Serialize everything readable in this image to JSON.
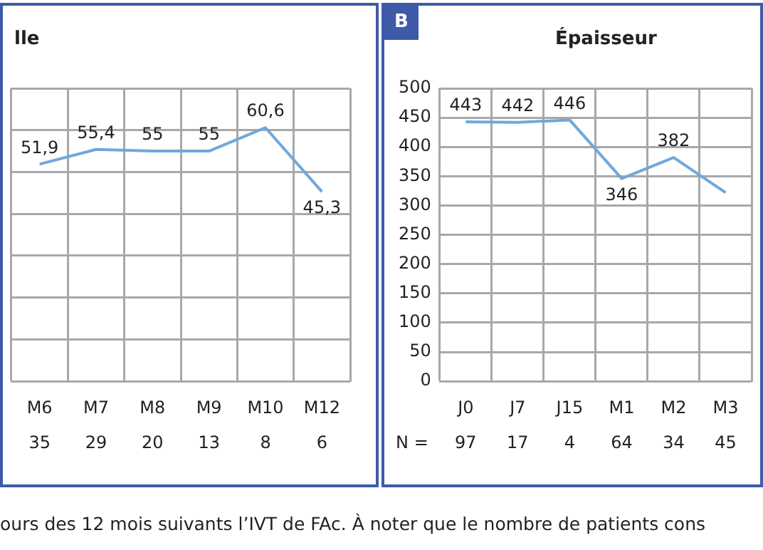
{
  "chart_data": [
    {
      "type": "line",
      "title": "lle",
      "categories": [
        "M6",
        "M7",
        "M8",
        "M9",
        "M10",
        "M12"
      ],
      "series": [
        {
          "color": "#6fa8dc",
          "values": [
            51.9,
            55.4,
            55,
            55,
            60.6,
            45.3
          ],
          "value_labels": [
            "51,9",
            "55,4",
            "55",
            "55",
            "60,6",
            "45,3"
          ]
        }
      ],
      "ylim": [
        0,
        70
      ],
      "yticks": [
        {
          "value": 0,
          "label": null
        },
        {
          "value": 10,
          "label": null
        },
        {
          "value": 20,
          "label": null
        },
        {
          "value": 30,
          "label": null
        },
        {
          "value": 40,
          "label": null
        },
        {
          "value": 50,
          "label": null
        },
        {
          "value": 60,
          "label": null
        },
        {
          "value": 70,
          "label": null
        }
      ],
      "tick_labels": "x",
      "grid": true,
      "marker": "none",
      "annotations": [
        "ours des 12 mois suivants l’IVT de FAc. À noter que le nombre de patients cons",
        "35",
        "29",
        "20",
        "13",
        "8",
        "6"
      ]
    },
    {
      "type": "line",
      "title": "Épaisseur",
      "categories": [
        "J0",
        "J7",
        "J15",
        "M1",
        "M2",
        "M3"
      ],
      "series": [
        {
          "color": "#6fa8dc",
          "values": [
            443,
            442,
            446,
            346,
            382,
            322
          ],
          "value_labels": [
            "443",
            "442",
            "446",
            "346",
            "382",
            null
          ]
        }
      ],
      "ylim": [
        0,
        500
      ],
      "yticks": [
        0,
        50,
        100,
        150,
        200,
        250,
        300,
        350,
        400,
        450,
        500
      ],
      "grid": true,
      "marker": "none",
      "annotations": [
        "B",
        "N =",
        "97",
        "17",
        "4",
        "64",
        "34",
        "45"
      ]
    }
  ]
}
